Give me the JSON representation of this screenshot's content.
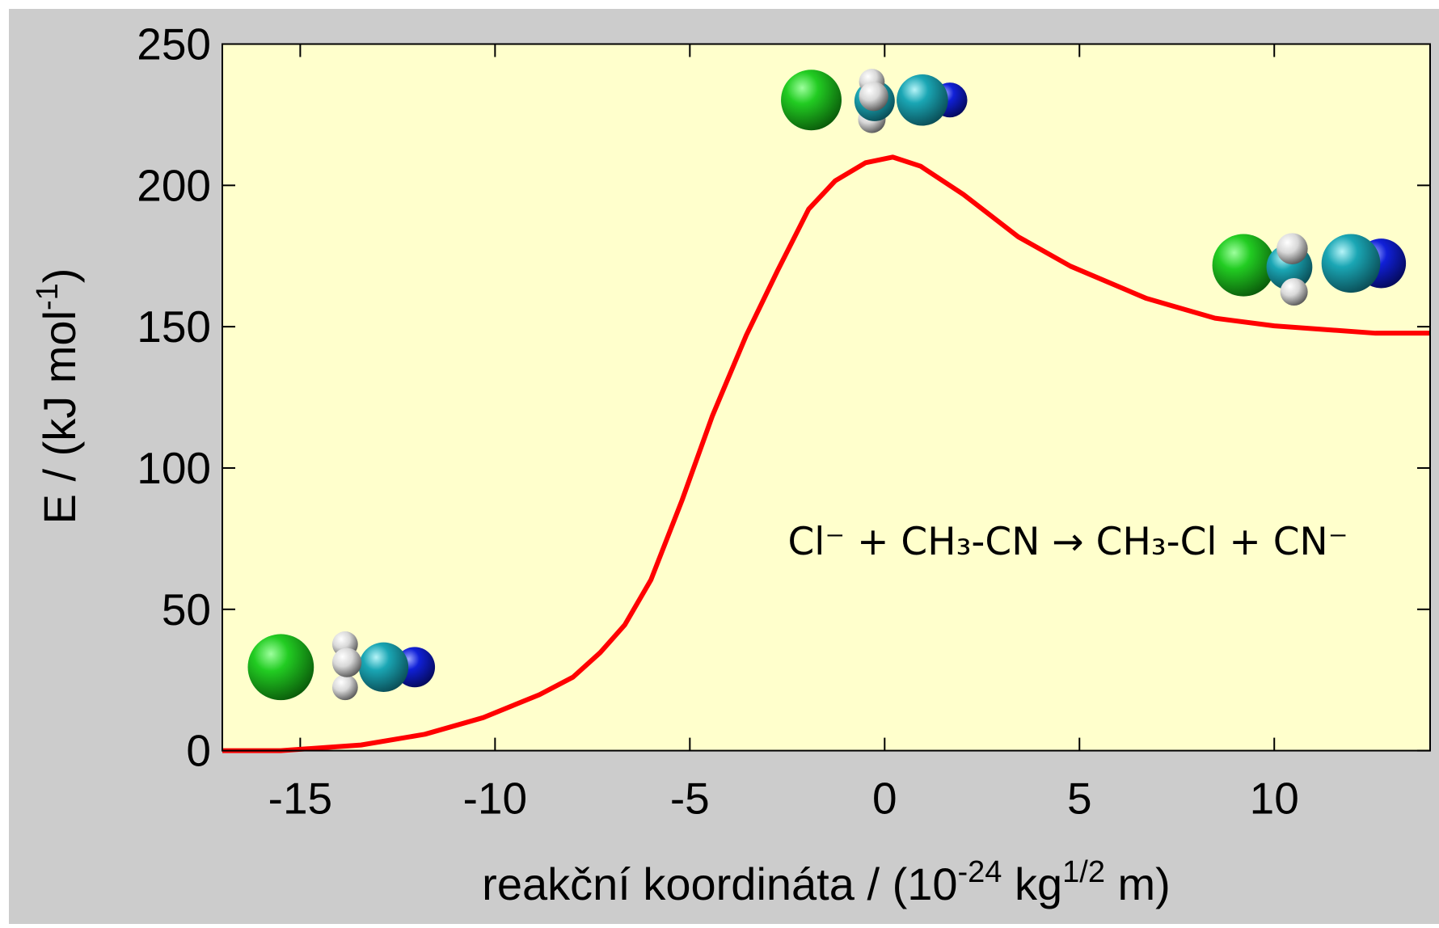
{
  "chart_data": {
    "type": "line",
    "ylabel": [
      "E / (kJ mol",
      "-1",
      ")"
    ],
    "xlabel": [
      "reakční koordináta / (10",
      "-24",
      " kg",
      "1/2",
      " m)"
    ],
    "annotation": "Cl⁻ + CH₃-CN  →  CH₃-Cl + CN⁻",
    "x": [
      -17,
      -15.5,
      -13.44,
      -11.8,
      -10.3,
      -8.86,
      -8.0,
      -7.3,
      -6.67,
      -6.0,
      -5.2,
      -4.42,
      -3.55,
      -2.75,
      -1.95,
      -1.27,
      -0.49,
      0.21,
      0.92,
      2.02,
      3.43,
      4.77,
      6.72,
      8.48,
      10,
      12.6,
      14
    ],
    "values": [
      0,
      0,
      2,
      5.8,
      11.7,
      19.8,
      26,
      34.7,
      44.5,
      60.4,
      88.6,
      118.5,
      147,
      169.8,
      191.6,
      201.6,
      208,
      210,
      206.8,
      196.8,
      181.8,
      171.4,
      160,
      153,
      150.3,
      147.7,
      147.7
    ],
    "color": "#ff0000",
    "xlim": [
      -17,
      14
    ],
    "xticks": [
      -15,
      -10,
      -5,
      0,
      5,
      10
    ],
    "ylim": [
      0,
      250
    ],
    "yticks": [
      0,
      50,
      100,
      150,
      200,
      250
    ]
  }
}
